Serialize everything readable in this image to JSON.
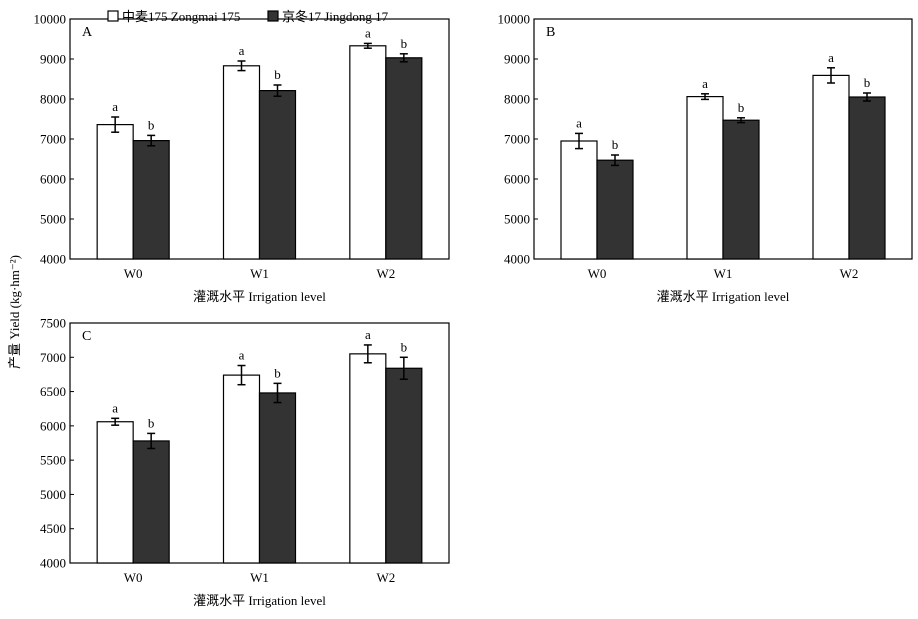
{
  "figure": {
    "y_axis_title": "产量 Yield (kg·hm⁻²)",
    "legend": [
      {
        "label": "中麦175 Zongmai 175",
        "fill": "#ffffff"
      },
      {
        "label": "京冬17 Jingdong 17",
        "fill": "#333333"
      }
    ]
  },
  "chart_data": [
    {
      "type": "bar",
      "panel_label": "A",
      "categories": [
        "W0",
        "W1",
        "W2"
      ],
      "xlabel": "灌溉水平 Irrigation level",
      "ylim": [
        4000,
        10000
      ],
      "yticks": [
        4000,
        5000,
        6000,
        7000,
        8000,
        9000,
        10000
      ],
      "series": [
        {
          "name": "中麦175 Zongmai 175",
          "values": [
            7360,
            8830,
            9330
          ],
          "errors": [
            190,
            120,
            60
          ],
          "letters": [
            "a",
            "a",
            "a"
          ]
        },
        {
          "name": "京冬17 Jingdong 17",
          "values": [
            6960,
            8210,
            9030
          ],
          "errors": [
            130,
            140,
            100
          ],
          "letters": [
            "b",
            "b",
            "b"
          ]
        }
      ]
    },
    {
      "type": "bar",
      "panel_label": "B",
      "categories": [
        "W0",
        "W1",
        "W2"
      ],
      "xlabel": "灌溉水平 Irrigation level",
      "ylim": [
        4000,
        10000
      ],
      "yticks": [
        4000,
        5000,
        6000,
        7000,
        8000,
        9000,
        10000
      ],
      "series": [
        {
          "name": "中麦175 Zongmai 175",
          "values": [
            6950,
            8060,
            8590
          ],
          "errors": [
            190,
            70,
            190
          ],
          "letters": [
            "a",
            "a",
            "a"
          ]
        },
        {
          "name": "京冬17 Jingdong 17",
          "values": [
            6470,
            7470,
            8050
          ],
          "errors": [
            130,
            60,
            100
          ],
          "letters": [
            "b",
            "b",
            "b"
          ]
        }
      ]
    },
    {
      "type": "bar",
      "panel_label": "C",
      "categories": [
        "W0",
        "W1",
        "W2"
      ],
      "xlabel": "灌溉水平 Irrigation level",
      "ylim": [
        4000,
        7500
      ],
      "yticks": [
        4000,
        4500,
        5000,
        5500,
        6000,
        6500,
        7000,
        7500
      ],
      "series": [
        {
          "name": "中麦175 Zongmai 175",
          "values": [
            6060,
            6740,
            7050
          ],
          "errors": [
            50,
            140,
            130
          ],
          "letters": [
            "a",
            "a",
            "a"
          ]
        },
        {
          "name": "京冬17 Jingdong 17",
          "values": [
            5780,
            6480,
            6840
          ],
          "errors": [
            110,
            140,
            160
          ],
          "letters": [
            "b",
            "b",
            "b"
          ]
        }
      ]
    }
  ]
}
